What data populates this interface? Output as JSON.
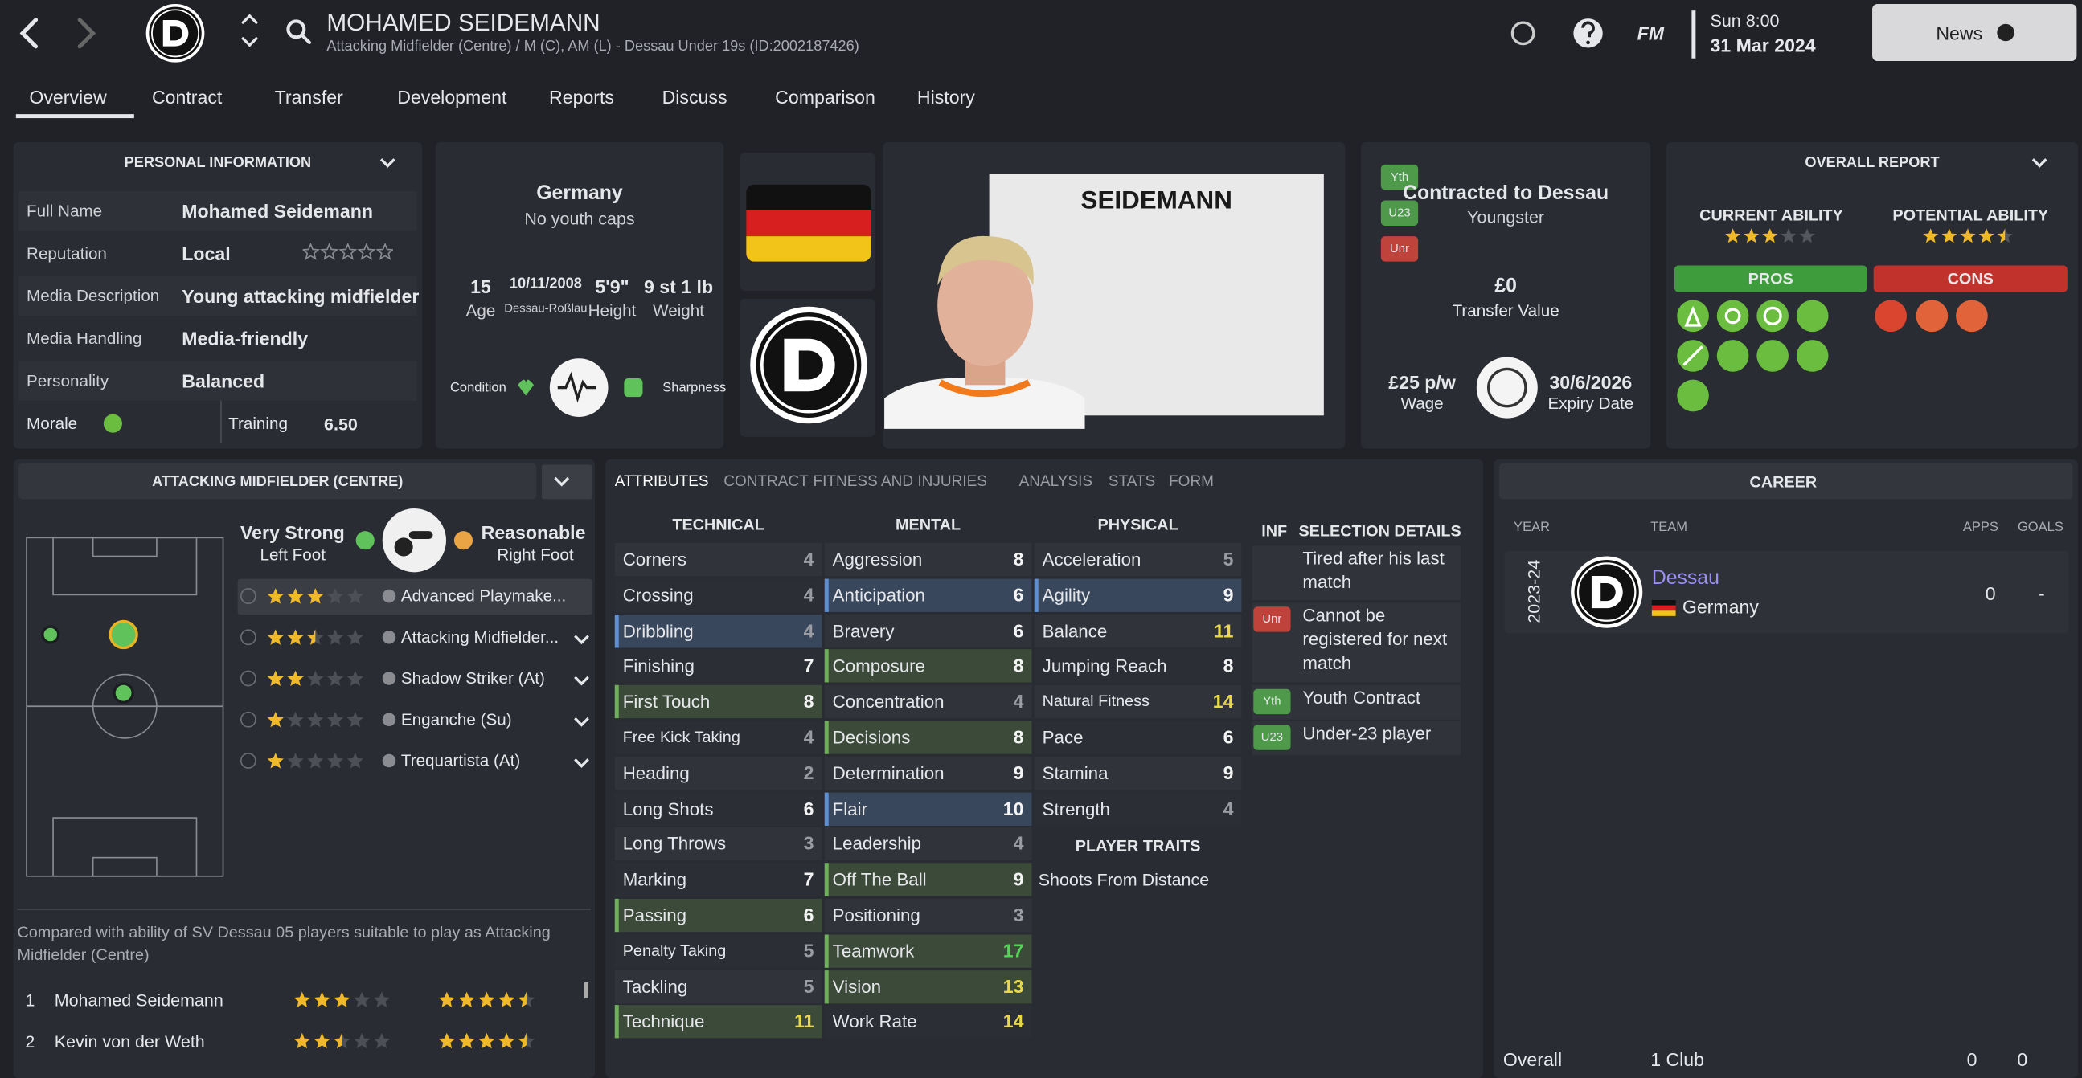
{
  "header": {
    "name": "MOHAMED SEIDEMANN",
    "subtitle": "Attacking Midfielder (Centre) / M (C), AM (L) - Dessau Under 19s (ID:2002187426)",
    "brand": "FM",
    "day_time": "Sun 8:00",
    "date": "31 Mar 2024",
    "news": "News"
  },
  "tabs": [
    "Overview",
    "Contract",
    "Transfer",
    "Development",
    "Reports",
    "Discuss",
    "Comparison",
    "History"
  ],
  "personal": {
    "title": "PERSONAL INFORMATION",
    "rows": [
      {
        "label": "Full Name",
        "value": "Mohamed Seidemann"
      },
      {
        "label": "Reputation",
        "value": "Local"
      },
      {
        "label": "Media Description",
        "value": "Young attacking midfielder"
      },
      {
        "label": "Media Handling",
        "value": "Media-friendly"
      },
      {
        "label": "Personality",
        "value": "Balanced"
      }
    ],
    "reputation_stars": 0,
    "morale": "Morale",
    "training": "Training",
    "training_value": "6.50"
  },
  "bio": {
    "nation": "Germany",
    "caps": "No youth caps",
    "stats": [
      {
        "value": "15",
        "label": "Age"
      },
      {
        "value": "10/11/2008",
        "label": "Dessau-Roßlau"
      },
      {
        "value": "5'9\"",
        "label": "Height"
      },
      {
        "value": "9 st 1 lb",
        "label": "Weight"
      }
    ],
    "condition": "Condition",
    "sharpness": "Sharpness"
  },
  "card": {
    "surname": "SEIDEMANN"
  },
  "contract": {
    "badges": [
      "Yth",
      "U23",
      "Unr"
    ],
    "title": "Contracted to Dessau",
    "status": "Youngster",
    "value": "£0",
    "value_label": "Transfer Value",
    "wage": "£25 p/w",
    "wage_label": "Wage",
    "expiry": "30/6/2026",
    "expiry_label": "Expiry Date"
  },
  "report": {
    "title": "OVERALL REPORT",
    "current_label": "CURRENT ABILITY",
    "current_stars": 3,
    "potential_label": "POTENTIAL ABILITY",
    "potential_stars": 4.5,
    "pros": "PROS",
    "cons": "CONS"
  },
  "position": {
    "title": "ATTACKING MIDFIELDER (CENTRE)",
    "left_foot": "Very Strong",
    "left_foot_label": "Left Foot",
    "right_foot": "Reasonable",
    "right_foot_label": "Right Foot",
    "roles": [
      {
        "name": "Advanced Playmake...",
        "stars": 3
      },
      {
        "name": "Attacking Midfielder...",
        "stars": 2.5
      },
      {
        "name": "Shadow Striker (At)",
        "stars": 2
      },
      {
        "name": "Enganche (Su)",
        "stars": 1
      },
      {
        "name": "Trequartista (At)",
        "stars": 1
      }
    ],
    "compare_text": "Compared with ability of SV Dessau 05 players suitable to play as Attacking Midfielder (Centre)",
    "compare": [
      {
        "rank": "1",
        "name": "Mohamed Seidemann",
        "current": 3,
        "potential": 4.5
      },
      {
        "rank": "2",
        "name": "Kevin von der Weth",
        "current": 2.5,
        "potential": 4.5
      }
    ]
  },
  "attributes": {
    "tabs": [
      "ATTRIBUTES",
      "CONTRACT",
      "FITNESS AND INJURIES",
      "ANALYSIS",
      "STATS",
      "FORM"
    ],
    "groups": [
      {
        "title": "TECHNICAL",
        "items": [
          {
            "name": "Corners",
            "value": 4
          },
          {
            "name": "Crossing",
            "value": 4
          },
          {
            "name": "Dribbling",
            "value": 4,
            "highlight": "blue"
          },
          {
            "name": "Finishing",
            "value": 7
          },
          {
            "name": "First Touch",
            "value": 8,
            "highlight": "green"
          },
          {
            "name": "Free Kick Taking",
            "value": 4
          },
          {
            "name": "Heading",
            "value": 2
          },
          {
            "name": "Long Shots",
            "value": 6
          },
          {
            "name": "Long Throws",
            "value": 3
          },
          {
            "name": "Marking",
            "value": 7
          },
          {
            "name": "Passing",
            "value": 6,
            "highlight": "green"
          },
          {
            "name": "Penalty Taking",
            "value": 5
          },
          {
            "name": "Tackling",
            "value": 5
          },
          {
            "name": "Technique",
            "value": 11,
            "highlight": "green"
          }
        ]
      },
      {
        "title": "MENTAL",
        "items": [
          {
            "name": "Aggression",
            "value": 8
          },
          {
            "name": "Anticipation",
            "value": 6,
            "highlight": "blue"
          },
          {
            "name": "Bravery",
            "value": 6
          },
          {
            "name": "Composure",
            "value": 8,
            "highlight": "green"
          },
          {
            "name": "Concentration",
            "value": 4
          },
          {
            "name": "Decisions",
            "value": 8,
            "highlight": "green"
          },
          {
            "name": "Determination",
            "value": 9
          },
          {
            "name": "Flair",
            "value": 10,
            "highlight": "blue"
          },
          {
            "name": "Leadership",
            "value": 4
          },
          {
            "name": "Off The Ball",
            "value": 9,
            "highlight": "green"
          },
          {
            "name": "Positioning",
            "value": 3
          },
          {
            "name": "Teamwork",
            "value": 17,
            "highlight": "green"
          },
          {
            "name": "Vision",
            "value": 13,
            "highlight": "green"
          },
          {
            "name": "Work Rate",
            "value": 14
          }
        ]
      },
      {
        "title": "PHYSICAL",
        "items": [
          {
            "name": "Acceleration",
            "value": 5
          },
          {
            "name": "Agility",
            "value": 9,
            "highlight": "blue"
          },
          {
            "name": "Balance",
            "value": 11
          },
          {
            "name": "Jumping Reach",
            "value": 8
          },
          {
            "name": "Natural Fitness",
            "value": 14
          },
          {
            "name": "Pace",
            "value": 6
          },
          {
            "name": "Stamina",
            "value": 9
          },
          {
            "name": "Strength",
            "value": 4
          }
        ]
      }
    ],
    "traits_title": "PLAYER TRAITS",
    "traits": [
      "Shoots From Distance"
    ],
    "inf": "INF",
    "selection_title": "SELECTION DETAILS",
    "selection": [
      {
        "text": "Tired after his last match"
      },
      {
        "badge": "Unr",
        "text": "Cannot be registered for next match"
      },
      {
        "badge": "Yth",
        "text": "Youth Contract"
      },
      {
        "badge": "U23",
        "text": "Under-23 player"
      }
    ]
  },
  "career": {
    "title": "CAREER",
    "columns": [
      "YEAR",
      "TEAM",
      "APPS",
      "GOALS"
    ],
    "rows": [
      {
        "year": "2023-24",
        "team": "Dessau",
        "nation": "Germany",
        "apps": "0",
        "goals": "-"
      }
    ],
    "total": {
      "label": "Overall",
      "clubs": "1 Club",
      "apps": "0",
      "goals": "0"
    }
  }
}
